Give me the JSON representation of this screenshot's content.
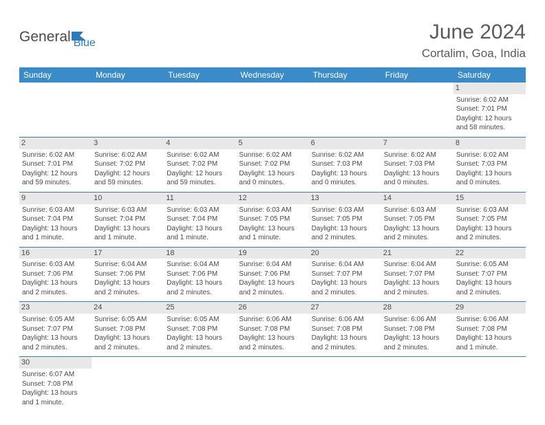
{
  "logo": {
    "general": "General",
    "blue": "Blue"
  },
  "title": "June 2024",
  "location": "Cortalim, Goa, India",
  "header_bg": "#3b8bc9",
  "header_text_color": "#ffffff",
  "border_color": "#3b7bb0",
  "daynum_bg": "#e8e8e8",
  "empty_bg": "#f0f0f0",
  "text_color": "#4a4a4a",
  "days": [
    "Sunday",
    "Monday",
    "Tuesday",
    "Wednesday",
    "Thursday",
    "Friday",
    "Saturday"
  ],
  "weeks": [
    [
      null,
      null,
      null,
      null,
      null,
      null,
      {
        "d": "1",
        "sr": "Sunrise: 6:02 AM",
        "ss": "Sunset: 7:01 PM",
        "dl1": "Daylight: 12 hours",
        "dl2": "and 58 minutes."
      }
    ],
    [
      {
        "d": "2",
        "sr": "Sunrise: 6:02 AM",
        "ss": "Sunset: 7:01 PM",
        "dl1": "Daylight: 12 hours",
        "dl2": "and 59 minutes."
      },
      {
        "d": "3",
        "sr": "Sunrise: 6:02 AM",
        "ss": "Sunset: 7:02 PM",
        "dl1": "Daylight: 12 hours",
        "dl2": "and 59 minutes."
      },
      {
        "d": "4",
        "sr": "Sunrise: 6:02 AM",
        "ss": "Sunset: 7:02 PM",
        "dl1": "Daylight: 12 hours",
        "dl2": "and 59 minutes."
      },
      {
        "d": "5",
        "sr": "Sunrise: 6:02 AM",
        "ss": "Sunset: 7:02 PM",
        "dl1": "Daylight: 13 hours",
        "dl2": "and 0 minutes."
      },
      {
        "d": "6",
        "sr": "Sunrise: 6:02 AM",
        "ss": "Sunset: 7:03 PM",
        "dl1": "Daylight: 13 hours",
        "dl2": "and 0 minutes."
      },
      {
        "d": "7",
        "sr": "Sunrise: 6:02 AM",
        "ss": "Sunset: 7:03 PM",
        "dl1": "Daylight: 13 hours",
        "dl2": "and 0 minutes."
      },
      {
        "d": "8",
        "sr": "Sunrise: 6:02 AM",
        "ss": "Sunset: 7:03 PM",
        "dl1": "Daylight: 13 hours",
        "dl2": "and 0 minutes."
      }
    ],
    [
      {
        "d": "9",
        "sr": "Sunrise: 6:03 AM",
        "ss": "Sunset: 7:04 PM",
        "dl1": "Daylight: 13 hours",
        "dl2": "and 1 minute."
      },
      {
        "d": "10",
        "sr": "Sunrise: 6:03 AM",
        "ss": "Sunset: 7:04 PM",
        "dl1": "Daylight: 13 hours",
        "dl2": "and 1 minute."
      },
      {
        "d": "11",
        "sr": "Sunrise: 6:03 AM",
        "ss": "Sunset: 7:04 PM",
        "dl1": "Daylight: 13 hours",
        "dl2": "and 1 minute."
      },
      {
        "d": "12",
        "sr": "Sunrise: 6:03 AM",
        "ss": "Sunset: 7:05 PM",
        "dl1": "Daylight: 13 hours",
        "dl2": "and 1 minute."
      },
      {
        "d": "13",
        "sr": "Sunrise: 6:03 AM",
        "ss": "Sunset: 7:05 PM",
        "dl1": "Daylight: 13 hours",
        "dl2": "and 2 minutes."
      },
      {
        "d": "14",
        "sr": "Sunrise: 6:03 AM",
        "ss": "Sunset: 7:05 PM",
        "dl1": "Daylight: 13 hours",
        "dl2": "and 2 minutes."
      },
      {
        "d": "15",
        "sr": "Sunrise: 6:03 AM",
        "ss": "Sunset: 7:05 PM",
        "dl1": "Daylight: 13 hours",
        "dl2": "and 2 minutes."
      }
    ],
    [
      {
        "d": "16",
        "sr": "Sunrise: 6:03 AM",
        "ss": "Sunset: 7:06 PM",
        "dl1": "Daylight: 13 hours",
        "dl2": "and 2 minutes."
      },
      {
        "d": "17",
        "sr": "Sunrise: 6:04 AM",
        "ss": "Sunset: 7:06 PM",
        "dl1": "Daylight: 13 hours",
        "dl2": "and 2 minutes."
      },
      {
        "d": "18",
        "sr": "Sunrise: 6:04 AM",
        "ss": "Sunset: 7:06 PM",
        "dl1": "Daylight: 13 hours",
        "dl2": "and 2 minutes."
      },
      {
        "d": "19",
        "sr": "Sunrise: 6:04 AM",
        "ss": "Sunset: 7:06 PM",
        "dl1": "Daylight: 13 hours",
        "dl2": "and 2 minutes."
      },
      {
        "d": "20",
        "sr": "Sunrise: 6:04 AM",
        "ss": "Sunset: 7:07 PM",
        "dl1": "Daylight: 13 hours",
        "dl2": "and 2 minutes."
      },
      {
        "d": "21",
        "sr": "Sunrise: 6:04 AM",
        "ss": "Sunset: 7:07 PM",
        "dl1": "Daylight: 13 hours",
        "dl2": "and 2 minutes."
      },
      {
        "d": "22",
        "sr": "Sunrise: 6:05 AM",
        "ss": "Sunset: 7:07 PM",
        "dl1": "Daylight: 13 hours",
        "dl2": "and 2 minutes."
      }
    ],
    [
      {
        "d": "23",
        "sr": "Sunrise: 6:05 AM",
        "ss": "Sunset: 7:07 PM",
        "dl1": "Daylight: 13 hours",
        "dl2": "and 2 minutes."
      },
      {
        "d": "24",
        "sr": "Sunrise: 6:05 AM",
        "ss": "Sunset: 7:08 PM",
        "dl1": "Daylight: 13 hours",
        "dl2": "and 2 minutes."
      },
      {
        "d": "25",
        "sr": "Sunrise: 6:05 AM",
        "ss": "Sunset: 7:08 PM",
        "dl1": "Daylight: 13 hours",
        "dl2": "and 2 minutes."
      },
      {
        "d": "26",
        "sr": "Sunrise: 6:06 AM",
        "ss": "Sunset: 7:08 PM",
        "dl1": "Daylight: 13 hours",
        "dl2": "and 2 minutes."
      },
      {
        "d": "27",
        "sr": "Sunrise: 6:06 AM",
        "ss": "Sunset: 7:08 PM",
        "dl1": "Daylight: 13 hours",
        "dl2": "and 2 minutes."
      },
      {
        "d": "28",
        "sr": "Sunrise: 6:06 AM",
        "ss": "Sunset: 7:08 PM",
        "dl1": "Daylight: 13 hours",
        "dl2": "and 2 minutes."
      },
      {
        "d": "29",
        "sr": "Sunrise: 6:06 AM",
        "ss": "Sunset: 7:08 PM",
        "dl1": "Daylight: 13 hours",
        "dl2": "and 1 minute."
      }
    ],
    [
      {
        "d": "30",
        "sr": "Sunrise: 6:07 AM",
        "ss": "Sunset: 7:08 PM",
        "dl1": "Daylight: 13 hours",
        "dl2": "and 1 minute."
      },
      null,
      null,
      null,
      null,
      null,
      null
    ]
  ]
}
